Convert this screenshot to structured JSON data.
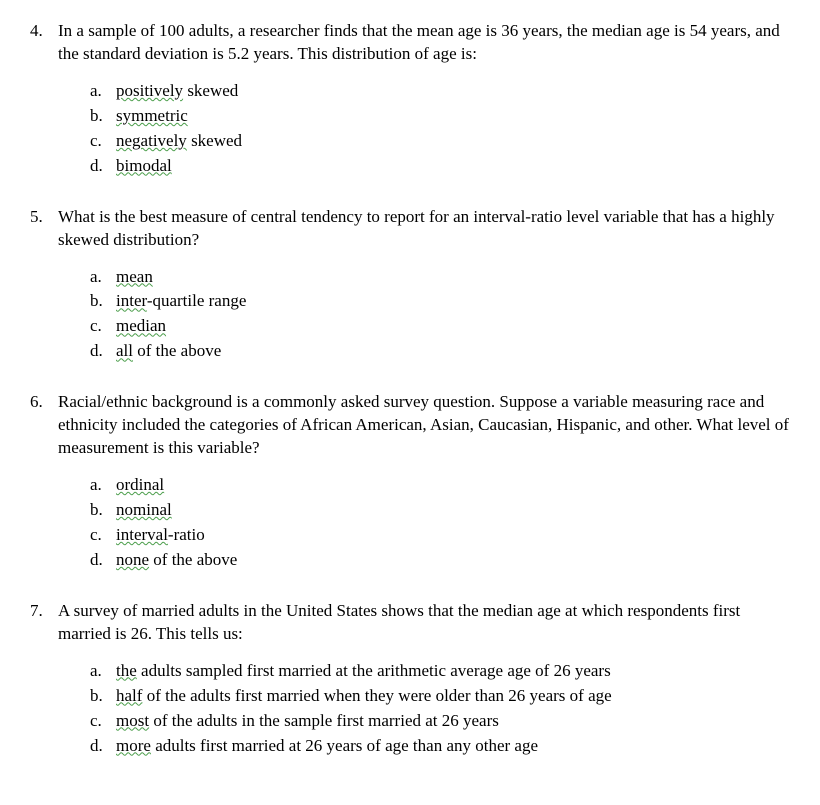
{
  "questions": [
    {
      "number": "4.",
      "stem": "In a sample of 100 adults, a researcher finds that the mean age is 36 years, the median age is 54 years, and the standard deviation is 5.2 years.  This distribution of age is:",
      "options": [
        {
          "letter": "a.",
          "pre": "",
          "squiggle": "positively",
          "post": " skewed"
        },
        {
          "letter": "b.",
          "pre": "",
          "squiggle": "symmetric",
          "post": ""
        },
        {
          "letter": "c.",
          "pre": "",
          "squiggle": "negatively",
          "post": " skewed"
        },
        {
          "letter": "d.",
          "pre": "",
          "squiggle": "bimodal",
          "post": ""
        }
      ]
    },
    {
      "number": "5.",
      "stem": "What is the best measure of central tendency to report for an interval-ratio level variable that has a highly skewed distribution?",
      "options": [
        {
          "letter": "a.",
          "pre": "",
          "squiggle": "mean",
          "post": ""
        },
        {
          "letter": "b.",
          "pre": "",
          "squiggle": "inter",
          "post": "-quartile range"
        },
        {
          "letter": "c.",
          "pre": "",
          "squiggle": "median",
          "post": ""
        },
        {
          "letter": "d.",
          "pre": "",
          "squiggle": "all",
          "post": " of the above"
        }
      ]
    },
    {
      "number": "6.",
      "stem": "Racial/ethnic background is a commonly asked survey question.  Suppose a variable measuring race and ethnicity included the categories of African American, Asian, Caucasian, Hispanic, and other.  What level of measurement is this variable?",
      "options": [
        {
          "letter": "a.",
          "pre": "",
          "squiggle": "ordinal",
          "post": ""
        },
        {
          "letter": "b.",
          "pre": "",
          "squiggle": "nominal",
          "post": ""
        },
        {
          "letter": "c.",
          "pre": "",
          "squiggle": "interval",
          "post": "-ratio"
        },
        {
          "letter": "d.",
          "pre": "",
          "squiggle": "none",
          "post": " of the above"
        }
      ]
    },
    {
      "number": "7.",
      "stem": "A survey of married adults in the United States shows that the median age at which respondents first married is 26.  This tells us:",
      "options": [
        {
          "letter": "a.",
          "pre": "",
          "squiggle": "the",
          "post": " adults sampled first married at the arithmetic average age of 26 years"
        },
        {
          "letter": "b.",
          "pre": "",
          "squiggle": "half",
          "post": " of the adults first married when they were older than 26 years of age"
        },
        {
          "letter": "c.",
          "pre": "",
          "squiggle": "most",
          "post": " of the adults in the sample first married at 26 years"
        },
        {
          "letter": "d.",
          "pre": "",
          "squiggle": "more",
          "post": " adults first married at 26 years of age than any other age"
        }
      ]
    }
  ],
  "style": {
    "font_family": "Times New Roman",
    "font_size_pt": 13,
    "text_color": "#000000",
    "background_color": "#ffffff",
    "squiggle_color": "#4a9d4a"
  }
}
